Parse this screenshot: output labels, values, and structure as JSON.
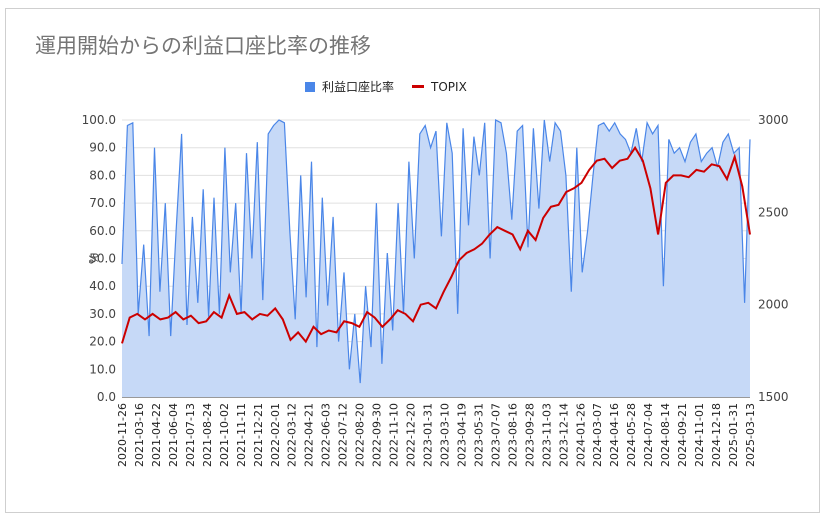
{
  "chart_data": {
    "type": "area",
    "title": "運用開始からの利益口座比率の推移",
    "ylabel_left": "%",
    "ylim_left": [
      0,
      100
    ],
    "yticks_left": [
      "0.0",
      "10.0",
      "20.0",
      "30.0",
      "40.0",
      "50.0",
      "60.0",
      "70.0",
      "80.0",
      "90.0",
      "100.0"
    ],
    "ylim_right": [
      1500,
      3000
    ],
    "yticks_right": [
      "1500",
      "2000",
      "2500",
      "3000"
    ],
    "legend_position": "top",
    "grid": true,
    "x_ticks": [
      "2020-11-26",
      "2021-03-16",
      "2021-04-22",
      "2021-06-04",
      "2021-07-13",
      "2021-08-24",
      "2021-10-02",
      "2021-11-11",
      "2021-12-21",
      "2022-02-01",
      "2022-03-12",
      "2022-04-21",
      "2022-06-03",
      "2022-07-12",
      "2022-08-20",
      "2022-09-30",
      "2022-11-10",
      "2022-12-20",
      "2023-01-31",
      "2023-03-10",
      "2023-04-19",
      "2023-05-31",
      "2023-07-07",
      "2023-08-16",
      "2023-09-28",
      "2023-11-03",
      "2023-12-14",
      "2024-01-26",
      "2024-03-07",
      "2024-04-16",
      "2024-05-28",
      "2024-07-04",
      "2024-08-14",
      "2024-09-21",
      "2024-11-01",
      "2024-12-18",
      "2025-01-31",
      "2025-03-13"
    ],
    "series": [
      {
        "name": "利益口座比率",
        "axis": "left",
        "color": "#4a86e8",
        "fill": "#c6d9f7",
        "values": [
          48,
          98,
          99,
          30,
          55,
          22,
          90,
          38,
          70,
          22,
          60,
          95,
          26,
          65,
          34,
          75,
          29,
          72,
          30,
          90,
          45,
          70,
          30,
          88,
          50,
          92,
          35,
          95,
          98,
          100,
          99,
          60,
          28,
          80,
          36,
          85,
          18,
          72,
          33,
          65,
          20,
          45,
          10,
          30,
          5,
          40,
          18,
          70,
          12,
          52,
          24,
          70,
          30,
          85,
          50,
          95,
          98,
          90,
          96,
          58,
          99,
          88,
          30,
          97,
          62,
          94,
          80,
          99,
          50,
          100,
          99,
          88,
          64,
          96,
          98,
          54,
          97,
          68,
          100,
          85,
          99,
          96,
          80,
          38,
          90,
          45,
          60,
          80,
          98,
          99,
          96,
          99,
          95,
          93,
          88,
          97,
          85,
          99,
          95,
          98,
          40,
          93,
          88,
          90,
          85,
          92,
          95,
          85,
          88,
          90,
          83,
          92,
          95,
          88,
          90,
          34,
          93
        ]
      },
      {
        "name": "TOPIX",
        "axis": "right",
        "color": "#cc0000",
        "values": [
          1790,
          1930,
          1950,
          1920,
          1950,
          1920,
          1930,
          1960,
          1920,
          1940,
          1900,
          1910,
          1960,
          1930,
          2050,
          1950,
          1960,
          1920,
          1950,
          1940,
          1980,
          1920,
          1810,
          1850,
          1800,
          1880,
          1840,
          1860,
          1850,
          1910,
          1900,
          1880,
          1960,
          1930,
          1880,
          1920,
          1970,
          1950,
          1910,
          2000,
          2010,
          1980,
          2070,
          2150,
          2240,
          2280,
          2300,
          2330,
          2380,
          2420,
          2400,
          2380,
          2300,
          2400,
          2350,
          2470,
          2530,
          2540,
          2610,
          2630,
          2660,
          2730,
          2780,
          2790,
          2740,
          2780,
          2790,
          2850,
          2780,
          2630,
          2380,
          2660,
          2700,
          2700,
          2690,
          2730,
          2720,
          2760,
          2750,
          2680,
          2800,
          2640,
          2380
        ]
      }
    ]
  }
}
